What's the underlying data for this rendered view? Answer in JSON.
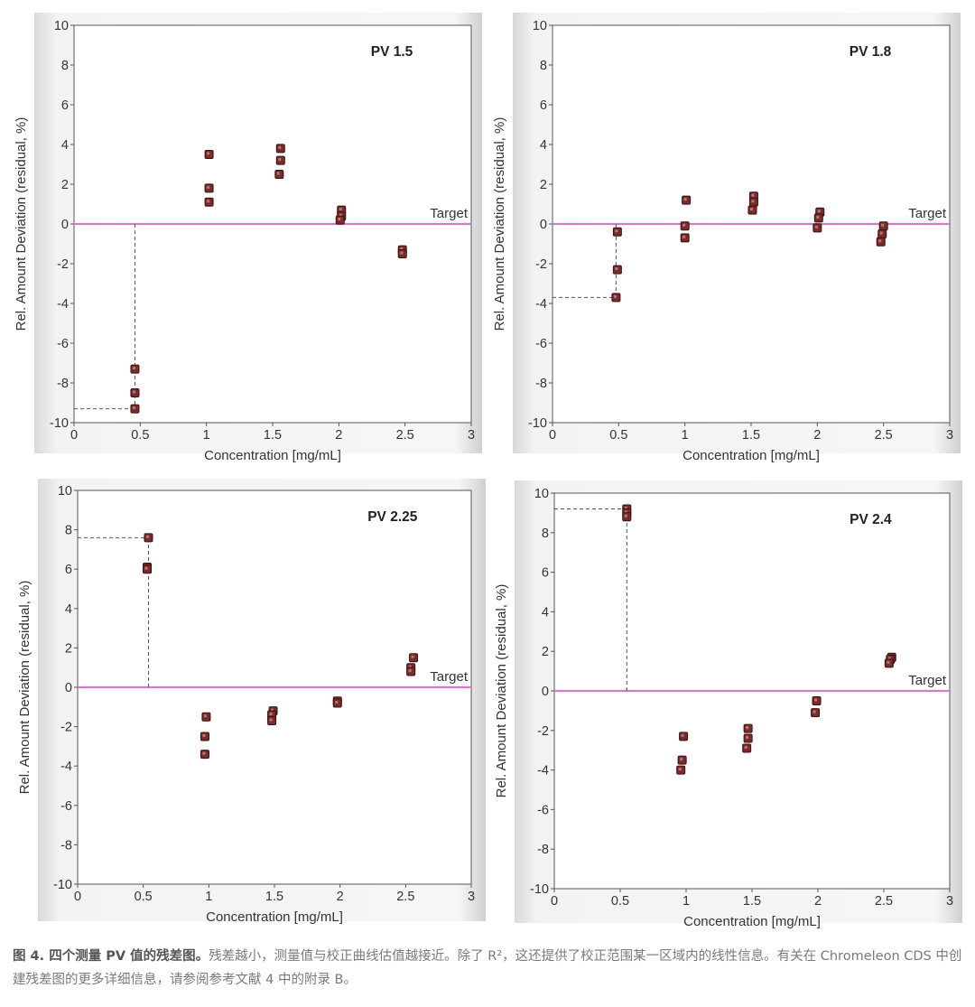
{
  "chart_data": [
    {
      "type": "scatter",
      "title": "PV 1.5",
      "xlabel": "Concentration [mg/mL]",
      "ylabel": "Rel. Amount Deviation (residual, %)",
      "xlim": [
        0,
        3
      ],
      "ylim": [
        -10,
        10
      ],
      "xticks": [
        0,
        0.5,
        1,
        1.5,
        2,
        2.5,
        3
      ],
      "yticks": [
        -10,
        -8,
        -6,
        -4,
        -2,
        0,
        2,
        4,
        6,
        8,
        10
      ],
      "target_label": "Target",
      "target_value": 0,
      "points": [
        {
          "x": 0.46,
          "y": -7.3
        },
        {
          "x": 0.46,
          "y": -8.5
        },
        {
          "x": 0.46,
          "y": -9.3
        },
        {
          "x": 1.02,
          "y": 3.5
        },
        {
          "x": 1.02,
          "y": 1.8
        },
        {
          "x": 1.02,
          "y": 1.1
        },
        {
          "x": 1.56,
          "y": 3.8
        },
        {
          "x": 1.56,
          "y": 3.2
        },
        {
          "x": 1.55,
          "y": 2.5
        },
        {
          "x": 2.02,
          "y": 0.7
        },
        {
          "x": 2.02,
          "y": 0.4
        },
        {
          "x": 2.01,
          "y": 0.2
        },
        {
          "x": 2.48,
          "y": -1.3
        },
        {
          "x": 2.48,
          "y": -1.5
        }
      ],
      "outlier": {
        "x": 0.46,
        "y": -9.3
      }
    },
    {
      "type": "scatter",
      "title": "PV 1.8",
      "xlabel": "Concentration [mg/mL]",
      "ylabel": "Rel. Amount Deviation (residual, %)",
      "xlim": [
        0,
        3
      ],
      "ylim": [
        -10,
        10
      ],
      "xticks": [
        0,
        0.5,
        1,
        1.5,
        2,
        2.5,
        3
      ],
      "yticks": [
        -10,
        -8,
        -6,
        -4,
        -2,
        0,
        2,
        4,
        6,
        8,
        10
      ],
      "target_label": "Target",
      "target_value": 0,
      "points": [
        {
          "x": 0.49,
          "y": -0.4
        },
        {
          "x": 0.49,
          "y": -2.3
        },
        {
          "x": 0.48,
          "y": -3.7
        },
        {
          "x": 1.01,
          "y": 1.2
        },
        {
          "x": 1.0,
          "y": -0.1
        },
        {
          "x": 1.0,
          "y": -0.7
        },
        {
          "x": 1.52,
          "y": 1.4
        },
        {
          "x": 1.52,
          "y": 1.1
        },
        {
          "x": 1.51,
          "y": 0.7
        },
        {
          "x": 2.02,
          "y": 0.6
        },
        {
          "x": 2.01,
          "y": 0.3
        },
        {
          "x": 2.0,
          "y": -0.2
        },
        {
          "x": 2.5,
          "y": -0.1
        },
        {
          "x": 2.49,
          "y": -0.5
        },
        {
          "x": 2.48,
          "y": -0.9
        }
      ],
      "outlier": {
        "x": 0.48,
        "y": -3.7
      }
    },
    {
      "type": "scatter",
      "title": "PV 2.25",
      "xlabel": "Concentration [mg/mL]",
      "ylabel": "Rel. Amount Deviation (residual, %)",
      "xlim": [
        0,
        3
      ],
      "ylim": [
        -10,
        10
      ],
      "xticks": [
        0,
        0.5,
        1,
        1.5,
        2,
        2.5,
        3
      ],
      "yticks": [
        -10,
        -8,
        -6,
        -4,
        -2,
        0,
        2,
        4,
        6,
        8,
        10
      ],
      "target_label": "Target",
      "target_value": 0,
      "points": [
        {
          "x": 0.54,
          "y": 7.6
        },
        {
          "x": 0.53,
          "y": 6.1
        },
        {
          "x": 0.53,
          "y": 6.0
        },
        {
          "x": 0.98,
          "y": -1.5
        },
        {
          "x": 0.97,
          "y": -2.5
        },
        {
          "x": 0.97,
          "y": -3.4
        },
        {
          "x": 1.49,
          "y": -1.2
        },
        {
          "x": 1.48,
          "y": -1.4
        },
        {
          "x": 1.48,
          "y": -1.7
        },
        {
          "x": 1.98,
          "y": -0.7
        },
        {
          "x": 1.98,
          "y": -0.8
        },
        {
          "x": 2.56,
          "y": 1.5
        },
        {
          "x": 2.54,
          "y": 1.0
        },
        {
          "x": 2.54,
          "y": 0.8
        }
      ],
      "outlier": {
        "x": 0.54,
        "y": 7.6
      }
    },
    {
      "type": "scatter",
      "title": "PV 2.4",
      "xlabel": "Concentration [mg/mL]",
      "ylabel": "Rel. Amount Deviation (residual, %)",
      "xlim": [
        0,
        3
      ],
      "ylim": [
        -10,
        10
      ],
      "xticks": [
        0,
        0.5,
        1,
        1.5,
        2,
        2.5,
        3
      ],
      "yticks": [
        -10,
        -8,
        -6,
        -4,
        -2,
        0,
        2,
        4,
        6,
        8,
        10
      ],
      "target_label": "Target",
      "target_value": 0,
      "points": [
        {
          "x": 0.55,
          "y": 9.2
        },
        {
          "x": 0.55,
          "y": 9.0
        },
        {
          "x": 0.55,
          "y": 8.8
        },
        {
          "x": 0.98,
          "y": -2.3
        },
        {
          "x": 0.97,
          "y": -3.5
        },
        {
          "x": 0.96,
          "y": -4.0
        },
        {
          "x": 1.47,
          "y": -1.9
        },
        {
          "x": 1.47,
          "y": -2.4
        },
        {
          "x": 1.46,
          "y": -2.9
        },
        {
          "x": 1.99,
          "y": -0.5
        },
        {
          "x": 1.98,
          "y": -1.1
        },
        {
          "x": 2.56,
          "y": 1.7
        },
        {
          "x": 2.55,
          "y": 1.6
        },
        {
          "x": 2.54,
          "y": 1.4
        }
      ],
      "outlier": {
        "x": 0.55,
        "y": 9.2
      }
    }
  ],
  "colors": {
    "target_line": "#d27cc6",
    "marker_fill": "#7a2c2c",
    "marker_stroke": "#3a1010",
    "axis": "#555555",
    "guide": "#555555"
  },
  "caption": {
    "lead": "图 4. 四个测量 PV 值的残差图。",
    "body": "残差越小，测量值与校正曲线估值越接近。除了 R²，这还提供了校正范围某一区域内的线性信息。有关在 Chromeleon CDS 中创建残差图的更多详细信息，请参阅参考文献 4 中的附录 B。"
  }
}
